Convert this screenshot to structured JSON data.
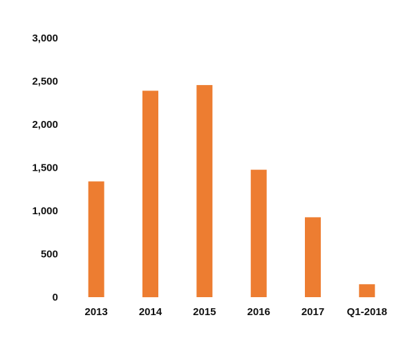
{
  "chart_data": {
    "type": "bar",
    "title": "",
    "xlabel": "",
    "ylabel": "",
    "categories": [
      "2013",
      "2014",
      "2015",
      "2016",
      "2017",
      "Q1-2018"
    ],
    "values": [
      1340,
      2390,
      2455,
      1475,
      925,
      150
    ],
    "ylim": [
      0,
      3000
    ],
    "yticks": [
      0,
      500,
      1000,
      1500,
      2000,
      2500,
      3000
    ],
    "ytick_labels": [
      "0",
      "500",
      "1,000",
      "1,500",
      "2,000",
      "2,500",
      "3,000"
    ],
    "grid": false,
    "legend": "none",
    "bar_color": "#ED7D31",
    "text_color": "#111111"
  }
}
